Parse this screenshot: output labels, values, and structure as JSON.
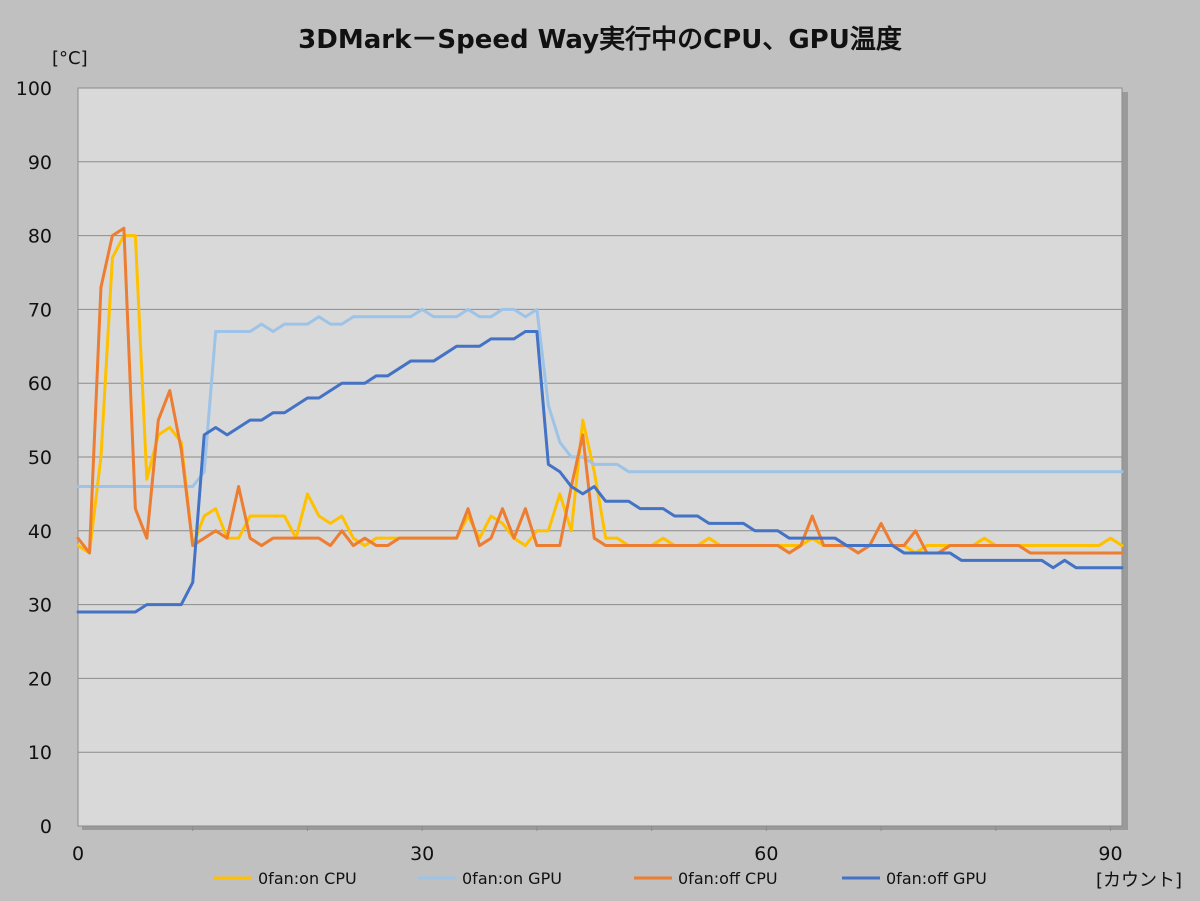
{
  "chart_data": {
    "type": "line",
    "title": "3DMark－Speed Way実行中のCPU、GPU温度",
    "ylabel": "[°C]",
    "xlabel": "[カウント]",
    "xlim": [
      0,
      91
    ],
    "ylim": [
      0,
      100
    ],
    "xticks": [
      0,
      30,
      60,
      90
    ],
    "yticks": [
      0,
      10,
      20,
      30,
      40,
      50,
      60,
      70,
      80,
      90,
      100
    ],
    "grid": true,
    "legend_position": "bottom",
    "series": [
      {
        "name": "0fan:on CPU",
        "color": "#ffc000",
        "values": [
          38,
          37,
          50,
          77,
          80,
          80,
          47,
          53,
          54,
          52,
          38,
          42,
          43,
          39,
          39,
          42,
          42,
          42,
          42,
          39,
          45,
          42,
          41,
          42,
          39,
          38,
          39,
          39,
          39,
          39,
          39,
          39,
          39,
          39,
          42,
          39,
          42,
          41,
          39,
          38,
          40,
          40,
          45,
          40,
          55,
          48,
          39,
          39,
          38,
          38,
          38,
          39,
          38,
          38,
          38,
          39,
          38,
          38,
          38,
          38,
          38,
          38,
          38,
          38,
          39,
          38,
          38,
          38,
          38,
          38,
          38,
          38,
          38,
          37,
          38,
          38,
          38,
          38,
          38,
          39,
          38,
          38,
          38,
          38,
          38,
          38,
          38,
          38,
          38,
          38,
          39,
          38
        ]
      },
      {
        "name": "0fan:on GPU",
        "color": "#9dc3e6",
        "values": [
          46,
          46,
          46,
          46,
          46,
          46,
          46,
          46,
          46,
          46,
          46,
          48,
          67,
          67,
          67,
          67,
          68,
          67,
          68,
          68,
          68,
          69,
          68,
          68,
          69,
          69,
          69,
          69,
          69,
          69,
          70,
          69,
          69,
          69,
          70,
          69,
          69,
          70,
          70,
          69,
          70,
          57,
          52,
          50,
          50,
          49,
          49,
          49,
          48,
          48,
          48,
          48,
          48,
          48,
          48,
          48,
          48,
          48,
          48,
          48,
          48,
          48,
          48,
          48,
          48,
          48,
          48,
          48,
          48,
          48,
          48,
          48,
          48,
          48,
          48,
          48,
          48,
          48,
          48,
          48,
          48,
          48,
          48,
          48,
          48,
          48,
          48,
          48,
          48,
          48,
          48,
          48
        ]
      },
      {
        "name": "0fan:off CPU",
        "color": "#ed7d31",
        "values": [
          39,
          37,
          73,
          80,
          81,
          43,
          39,
          55,
          59,
          51,
          38,
          39,
          40,
          39,
          46,
          39,
          38,
          39,
          39,
          39,
          39,
          39,
          38,
          40,
          38,
          39,
          38,
          38,
          39,
          39,
          39,
          39,
          39,
          39,
          43,
          38,
          39,
          43,
          39,
          43,
          38,
          38,
          38,
          46,
          53,
          39,
          38,
          38,
          38,
          38,
          38,
          38,
          38,
          38,
          38,
          38,
          38,
          38,
          38,
          38,
          38,
          38,
          37,
          38,
          42,
          38,
          38,
          38,
          37,
          38,
          41,
          38,
          38,
          40,
          37,
          37,
          38,
          38,
          38,
          38,
          38,
          38,
          38,
          37,
          37,
          37,
          37,
          37,
          37,
          37,
          37,
          37
        ]
      },
      {
        "name": "0fan:off GPU",
        "color": "#4472c4",
        "values": [
          29,
          29,
          29,
          29,
          29,
          29,
          30,
          30,
          30,
          30,
          33,
          53,
          54,
          53,
          54,
          55,
          55,
          56,
          56,
          57,
          58,
          58,
          59,
          60,
          60,
          60,
          61,
          61,
          62,
          63,
          63,
          63,
          64,
          65,
          65,
          65,
          66,
          66,
          66,
          67,
          67,
          49,
          48,
          46,
          45,
          46,
          44,
          44,
          44,
          43,
          43,
          43,
          42,
          42,
          42,
          41,
          41,
          41,
          41,
          40,
          40,
          40,
          39,
          39,
          39,
          39,
          39,
          38,
          38,
          38,
          38,
          38,
          37,
          37,
          37,
          37,
          37,
          36,
          36,
          36,
          36,
          36,
          36,
          36,
          36,
          35,
          36,
          35,
          35,
          35,
          35,
          35
        ]
      }
    ]
  }
}
